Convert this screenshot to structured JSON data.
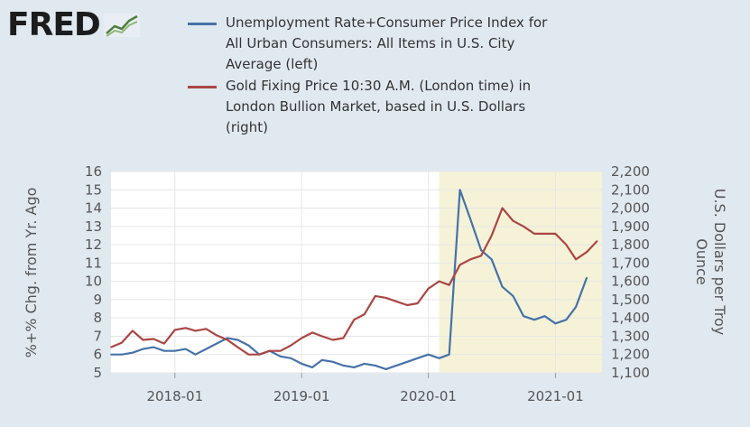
{
  "logo": {
    "text": "FRED"
  },
  "legend": [
    {
      "label": "Unemployment Rate+Consumer Price Index for All Urban Consumers: All Items in U.S. City Average (left)",
      "color": "#4572a7"
    },
    {
      "label": "Gold Fixing Price 10:30 A.M. (London time) in London Bullion Market, based in U.S. Dollars (right)",
      "color": "#aa4643"
    }
  ],
  "chart_data": {
    "type": "line",
    "ylabel_left": "%+% Chg. from Yr. Ago",
    "ylabel_right": "U.S. Dollars per Troy Ounce",
    "ylim_left": [
      5,
      16
    ],
    "ylim_right": [
      1100,
      2200
    ],
    "xlim": [
      "2017-07-01",
      "2021-05-15"
    ],
    "x_ticks": [
      "2018-01",
      "2019-01",
      "2020-01",
      "2021-01"
    ],
    "y_ticks_left": [
      "5",
      "6",
      "7",
      "8",
      "9",
      "10",
      "11",
      "12",
      "13",
      "14",
      "15",
      "16"
    ],
    "y_ticks_right": [
      "1,100",
      "1,200",
      "1,300",
      "1,400",
      "1,500",
      "1,600",
      "1,700",
      "1,800",
      "1,900",
      "2,000",
      "2,100",
      "2,200"
    ],
    "recession": {
      "start": "2020-02-01",
      "end": "2021-05-15",
      "color": "#f5f2d8"
    },
    "grid": true,
    "series": [
      {
        "name": "Unemployment Rate+Consumer Price Index for All Urban Consumers: All Items in U.S. City Average (left)",
        "axis": "left",
        "color": "#4572a7",
        "points": [
          [
            "2017-07-01",
            6.0
          ],
          [
            "2017-08-01",
            6.0
          ],
          [
            "2017-09-01",
            6.1
          ],
          [
            "2017-10-01",
            6.3
          ],
          [
            "2017-11-01",
            6.4
          ],
          [
            "2017-12-01",
            6.2
          ],
          [
            "2018-01-01",
            6.2
          ],
          [
            "2018-02-01",
            6.3
          ],
          [
            "2018-03-01",
            6.0
          ],
          [
            "2018-04-01",
            6.3
          ],
          [
            "2018-05-01",
            6.6
          ],
          [
            "2018-06-01",
            6.9
          ],
          [
            "2018-07-01",
            6.8
          ],
          [
            "2018-08-01",
            6.5
          ],
          [
            "2018-09-01",
            6.0
          ],
          [
            "2018-10-01",
            6.2
          ],
          [
            "2018-11-01",
            5.9
          ],
          [
            "2018-12-01",
            5.8
          ],
          [
            "2019-01-01",
            5.5
          ],
          [
            "2019-02-01",
            5.3
          ],
          [
            "2019-03-01",
            5.7
          ],
          [
            "2019-04-01",
            5.6
          ],
          [
            "2019-05-01",
            5.4
          ],
          [
            "2019-06-01",
            5.3
          ],
          [
            "2019-07-01",
            5.5
          ],
          [
            "2019-08-01",
            5.4
          ],
          [
            "2019-09-01",
            5.2
          ],
          [
            "2019-10-01",
            5.4
          ],
          [
            "2019-11-01",
            5.6
          ],
          [
            "2019-12-01",
            5.8
          ],
          [
            "2020-01-01",
            6.0
          ],
          [
            "2020-02-01",
            5.8
          ],
          [
            "2020-03-01",
            6.0
          ],
          [
            "2020-04-01",
            15.0
          ],
          [
            "2020-05-01",
            13.4
          ],
          [
            "2020-06-01",
            11.7
          ],
          [
            "2020-07-01",
            11.2
          ],
          [
            "2020-08-01",
            9.7
          ],
          [
            "2020-09-01",
            9.2
          ],
          [
            "2020-10-01",
            8.1
          ],
          [
            "2020-11-01",
            7.9
          ],
          [
            "2020-12-01",
            8.1
          ],
          [
            "2021-01-01",
            7.7
          ],
          [
            "2021-02-01",
            7.9
          ],
          [
            "2021-03-01",
            8.6
          ],
          [
            "2021-04-01",
            10.2
          ]
        ]
      },
      {
        "name": "Gold Fixing Price 10:30 A.M. (London time) in London Bullion Market, based in U.S. Dollars (right)",
        "axis": "right",
        "color": "#aa4643",
        "points": [
          [
            "2017-07-01",
            1240
          ],
          [
            "2017-08-01",
            1265
          ],
          [
            "2017-09-01",
            1330
          ],
          [
            "2017-10-01",
            1280
          ],
          [
            "2017-11-01",
            1285
          ],
          [
            "2017-12-01",
            1260
          ],
          [
            "2018-01-01",
            1335
          ],
          [
            "2018-02-01",
            1345
          ],
          [
            "2018-03-01",
            1330
          ],
          [
            "2018-04-01",
            1340
          ],
          [
            "2018-05-01",
            1305
          ],
          [
            "2018-06-01",
            1280
          ],
          [
            "2018-07-01",
            1240
          ],
          [
            "2018-08-01",
            1200
          ],
          [
            "2018-09-01",
            1200
          ],
          [
            "2018-10-01",
            1220
          ],
          [
            "2018-11-01",
            1220
          ],
          [
            "2018-12-01",
            1250
          ],
          [
            "2019-01-01",
            1290
          ],
          [
            "2019-02-01",
            1320
          ],
          [
            "2019-03-01",
            1300
          ],
          [
            "2019-04-01",
            1280
          ],
          [
            "2019-05-01",
            1290
          ],
          [
            "2019-06-01",
            1390
          ],
          [
            "2019-07-01",
            1420
          ],
          [
            "2019-08-01",
            1520
          ],
          [
            "2019-09-01",
            1510
          ],
          [
            "2019-10-01",
            1490
          ],
          [
            "2019-11-01",
            1470
          ],
          [
            "2019-12-01",
            1480
          ],
          [
            "2020-01-01",
            1560
          ],
          [
            "2020-02-01",
            1600
          ],
          [
            "2020-03-01",
            1580
          ],
          [
            "2020-04-01",
            1690
          ],
          [
            "2020-05-01",
            1720
          ],
          [
            "2020-06-01",
            1740
          ],
          [
            "2020-07-01",
            1850
          ],
          [
            "2020-08-01",
            2000
          ],
          [
            "2020-09-01",
            1930
          ],
          [
            "2020-10-01",
            1900
          ],
          [
            "2020-11-01",
            1860
          ],
          [
            "2020-12-01",
            1860
          ],
          [
            "2021-01-01",
            1860
          ],
          [
            "2021-02-01",
            1800
          ],
          [
            "2021-03-01",
            1720
          ],
          [
            "2021-04-01",
            1760
          ],
          [
            "2021-05-01",
            1820
          ]
        ]
      }
    ]
  }
}
